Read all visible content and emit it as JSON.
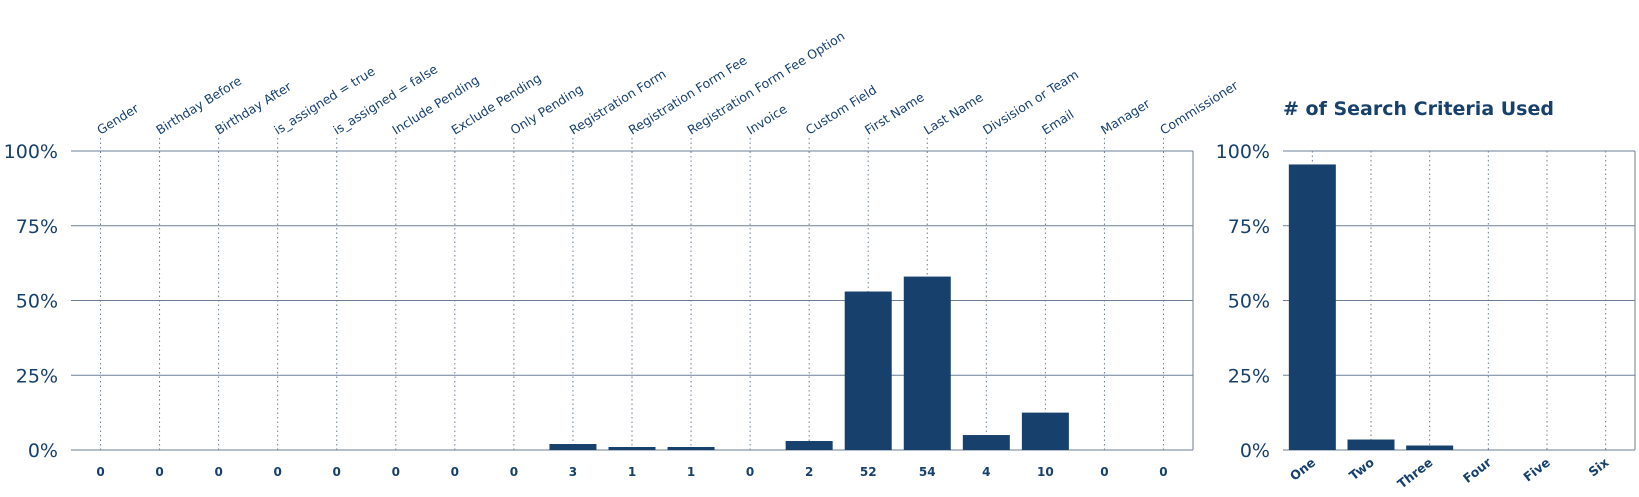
{
  "chart_data": [
    {
      "type": "bar",
      "title": "",
      "xlabel": "",
      "ylabel": "",
      "ylim": [
        0,
        100
      ],
      "y_ticks": [
        "0%",
        "25%",
        "50%",
        "75%",
        "100%"
      ],
      "grid": "horizontal solid, vertical dotted",
      "categories": [
        "Gender",
        "Birthday Before",
        "Birthday After",
        "is_assigned = true",
        "is_assigned = false",
        "Include Pending",
        "Exclude Pending",
        "Only Pending",
        "Registration Form",
        "Registration Form Fee",
        "Registration Form Fee Option",
        "Invoice",
        "Custom Field",
        "First Name",
        "Last Name",
        "Divsision or Team",
        "Email",
        "Manager",
        "Commissioner"
      ],
      "values": [
        0,
        0,
        0,
        0,
        0,
        0,
        0,
        0,
        2,
        1,
        1,
        0,
        3,
        53,
        58,
        5,
        12.5,
        0,
        0
      ],
      "count_labels": [
        "0",
        "0",
        "0",
        "0",
        "0",
        "0",
        "0",
        "0",
        "3",
        "1",
        "1",
        "0",
        "2",
        "52",
        "54",
        "4",
        "10",
        "0",
        "0"
      ]
    },
    {
      "type": "bar",
      "title": "# of Search Criteria Used",
      "xlabel": "",
      "ylabel": "",
      "ylim": [
        0,
        100
      ],
      "y_ticks": [
        "0%",
        "25%",
        "50%",
        "75%",
        "100%"
      ],
      "grid": "horizontal solid, vertical dotted",
      "categories": [
        "One",
        "Two",
        "Three",
        "Four",
        "Five",
        "Six"
      ],
      "values": [
        95.5,
        3.5,
        1.5,
        0,
        0,
        0
      ]
    }
  ],
  "colors": {
    "bar": "#17406d",
    "grid": "#6b7f99",
    "text": "#17406d"
  }
}
